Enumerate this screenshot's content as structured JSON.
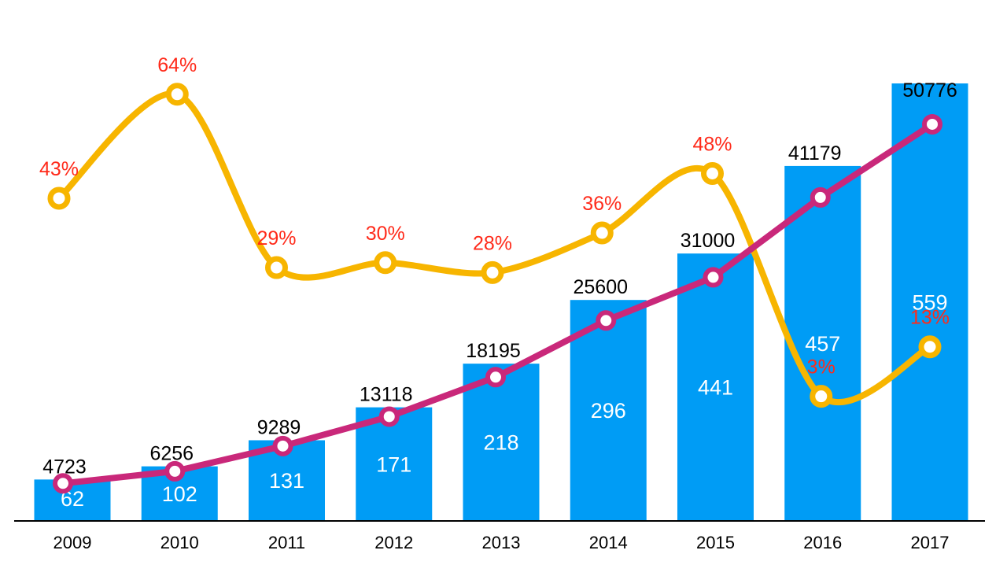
{
  "colors": {
    "bars": "#009cf5",
    "totals_line": "#c9287a",
    "growth_line": "#f7b500",
    "growth_label": "#ff2a1a",
    "axis": "#000000",
    "marker_fill": "#ffffff"
  },
  "chart_data": {
    "type": "bar",
    "title": "",
    "xlabel": "",
    "ylabel": "",
    "categories": [
      "2009",
      "2010",
      "2011",
      "2012",
      "2013",
      "2014",
      "2015",
      "2016",
      "2017"
    ],
    "ylim": [
      0,
      57000
    ],
    "grid": false,
    "series": [
      {
        "type": "bar",
        "values": [
          4723,
          6256,
          9289,
          13118,
          18195,
          25600,
          31000,
          41179,
          50776
        ],
        "labels": [
          "4723",
          "6256",
          "9289",
          "13118",
          "18195",
          "25600",
          "31000",
          "41179",
          "50776"
        ],
        "inner_labels": [
          "62",
          "102",
          "131",
          "171",
          "218",
          "296",
          "441",
          "457",
          "559"
        ]
      },
      {
        "type": "line",
        "values": [
          4272,
          5681,
          8617,
          12035,
          16626,
          23213,
          28232,
          37519,
          46023
        ]
      },
      {
        "type": "line",
        "smooth": true,
        "values": [
          43,
          64,
          29,
          30,
          28,
          36,
          48,
          3,
          13
        ],
        "labels": [
          "43%",
          "64%",
          "29%",
          "30%",
          "28%",
          "36%",
          "48%",
          "3%",
          "13%"
        ],
        "ylim": [
          -22,
          77
        ]
      }
    ]
  }
}
